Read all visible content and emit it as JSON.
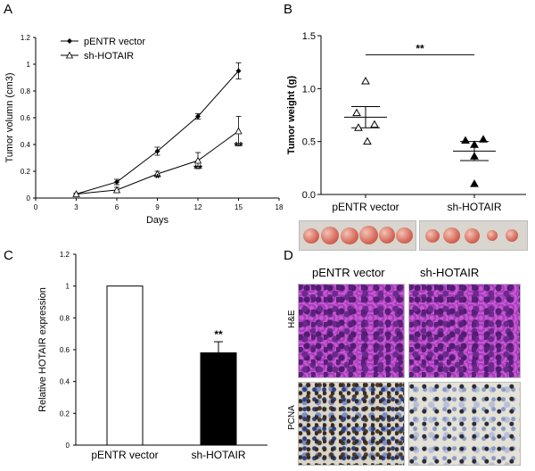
{
  "panels": {
    "A": {
      "letter": "A"
    },
    "B": {
      "letter": "B"
    },
    "C": {
      "letter": "C"
    },
    "D": {
      "letter": "D"
    }
  },
  "chart_data": [
    {
      "panel": "A",
      "type": "line",
      "xlabel": "Days",
      "ylabel": "Tumor volumn (cm3)",
      "xlim": [
        0,
        18
      ],
      "ylim": [
        0,
        1.2
      ],
      "xticks": [
        "0",
        "3",
        "6",
        "9",
        "12",
        "15",
        "18"
      ],
      "yticks": [
        "0",
        "0.2",
        "0.4",
        "0.6",
        "0.8",
        "1",
        "1.2"
      ],
      "legend": "top-left",
      "series": [
        {
          "name": "pENTR vector",
          "marker": "filled-diamond",
          "points": [
            {
              "x": 3,
              "y": 0.03,
              "err": 0.005
            },
            {
              "x": 6,
              "y": 0.12,
              "err": 0.02
            },
            {
              "x": 9,
              "y": 0.35,
              "err": 0.03
            },
            {
              "x": 12,
              "y": 0.61,
              "err": 0.02
            },
            {
              "x": 15,
              "y": 0.95,
              "err": 0.06
            }
          ]
        },
        {
          "name": "sh-HOTAIR",
          "marker": "open-triangle",
          "points": [
            {
              "x": 3,
              "y": 0.03,
              "err": 0.005
            },
            {
              "x": 6,
              "y": 0.06,
              "err": 0.02
            },
            {
              "x": 9,
              "y": 0.18,
              "err": 0.02
            },
            {
              "x": 12,
              "y": 0.28,
              "err": 0.06
            },
            {
              "x": 15,
              "y": 0.5,
              "err": 0.11
            }
          ]
        }
      ],
      "annotations": [
        {
          "x": 9,
          "y": 0.12,
          "text": "*"
        },
        {
          "x": 12,
          "y": 0.19,
          "text": "**"
        },
        {
          "x": 15,
          "y": 0.36,
          "text": "**"
        }
      ]
    },
    {
      "panel": "B",
      "type": "scatter",
      "xlabel": "",
      "ylabel": "Tumor weight (g)",
      "ylim": [
        0,
        1.5
      ],
      "yticks": [
        "0.0",
        "0.5",
        "1.0",
        "1.5"
      ],
      "categories": [
        "pENTR vector",
        "sh-HOTAIR"
      ],
      "groups": [
        {
          "name": "pENTR vector",
          "marker": "open-triangle",
          "mean": 0.73,
          "sem": 0.1,
          "values": [
            1.07,
            0.77,
            0.66,
            0.63,
            0.5
          ]
        },
        {
          "name": "sh-HOTAIR",
          "marker": "filled-triangle",
          "mean": 0.41,
          "sem": 0.09,
          "values": [
            0.51,
            0.52,
            0.47,
            0.36,
            0.1
          ]
        }
      ],
      "significance": "**"
    },
    {
      "panel": "C",
      "type": "bar",
      "xlabel": "",
      "ylabel": "Relative HOTAIR expression",
      "ylim": [
        0,
        1.2
      ],
      "yticks": [
        "0",
        "0.2",
        "0.4",
        "0.6",
        "0.8",
        "1",
        "1.2"
      ],
      "categories": [
        "pENTR vector",
        "sh-HOTAIR"
      ],
      "values": [
        1.0,
        0.58
      ],
      "errors": [
        0,
        0.07
      ],
      "colors": [
        "#ffffff",
        "#000000"
      ],
      "significance": "**"
    }
  ],
  "panel_d": {
    "col_labels": [
      "pENTR vector",
      "sh-HOTAIR"
    ],
    "row_labels": [
      "H&E",
      "PCNA"
    ]
  },
  "tumor_photos": {
    "left_count": 6,
    "right_count": 5
  }
}
